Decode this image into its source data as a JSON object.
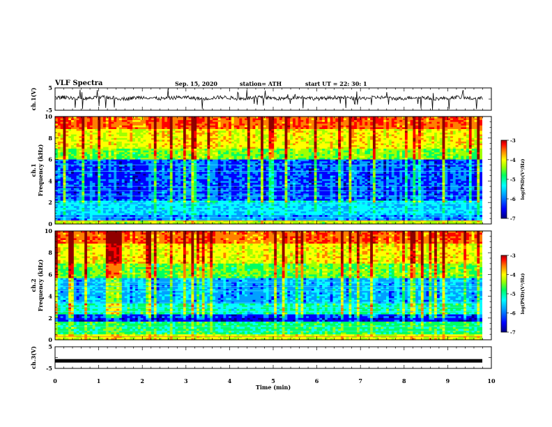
{
  "header": {
    "title": "VLF Spectra",
    "date": "Sep. 15, 2020",
    "station": "station= ATH",
    "start": "start  UT  =    22: 30: 1"
  },
  "chart_data": [
    {
      "type": "line",
      "panel": "waveform-ch1",
      "ylabel": "ch.1(V)",
      "ylim": [
        -5,
        5
      ],
      "yticks": [
        "5",
        "-5"
      ],
      "xlim": [
        0,
        10
      ],
      "description_values": {
        "baseline": 0.5,
        "range": [
          -5,
          5
        ]
      }
    },
    {
      "type": "heatmap",
      "panel": "spectrogram-ch1",
      "ylabel": "ch.1\nFrequency  (kHz)",
      "ylabel_lines": [
        "ch.1",
        "Frequency  (kHz)"
      ],
      "ylim": [
        0,
        10
      ],
      "yticks": [
        "0",
        "2",
        "4",
        "6",
        "8",
        "10"
      ],
      "xlim": [
        0,
        9.8
      ],
      "colorbar": {
        "label": "log(PSD)(V²/Hz)",
        "range": [
          -7,
          -3
        ],
        "ticks": [
          "-3",
          "-4",
          "-5",
          "-6",
          "-7"
        ]
      }
    },
    {
      "type": "heatmap",
      "panel": "spectrogram-ch2",
      "ylabel_lines": [
        "ch.2",
        "Frequency  (kHz)"
      ],
      "ylim": [
        0,
        10
      ],
      "yticks": [
        "0",
        "2",
        "4",
        "6",
        "8",
        "10"
      ],
      "xlim": [
        0,
        9.8
      ],
      "colorbar": {
        "label": "log(PSD)(V²/Hz)",
        "range": [
          -7,
          -3
        ],
        "ticks": [
          "-3",
          "-4",
          "-5",
          "-6",
          "-7"
        ]
      }
    },
    {
      "type": "line",
      "panel": "waveform-ch3",
      "ylabel": "ch.3(V)",
      "ylim": [
        -5,
        5
      ],
      "yticks": [
        "5",
        "-5"
      ],
      "xlim": [
        0,
        10
      ],
      "description_values": {
        "baseline": -1.5
      }
    }
  ],
  "xaxis": {
    "label": "Time  (min)",
    "ticks": [
      "0",
      "1",
      "2",
      "3",
      "4",
      "5",
      "6",
      "7",
      "8",
      "9",
      "10"
    ]
  },
  "colors": {
    "ink": "#000000",
    "colormap": [
      "#000080",
      "#0000ff",
      "#00a0ff",
      "#00ffff",
      "#00ff60",
      "#a0ff00",
      "#ffff00",
      "#ff8000",
      "#ff0000",
      "#900000"
    ]
  }
}
